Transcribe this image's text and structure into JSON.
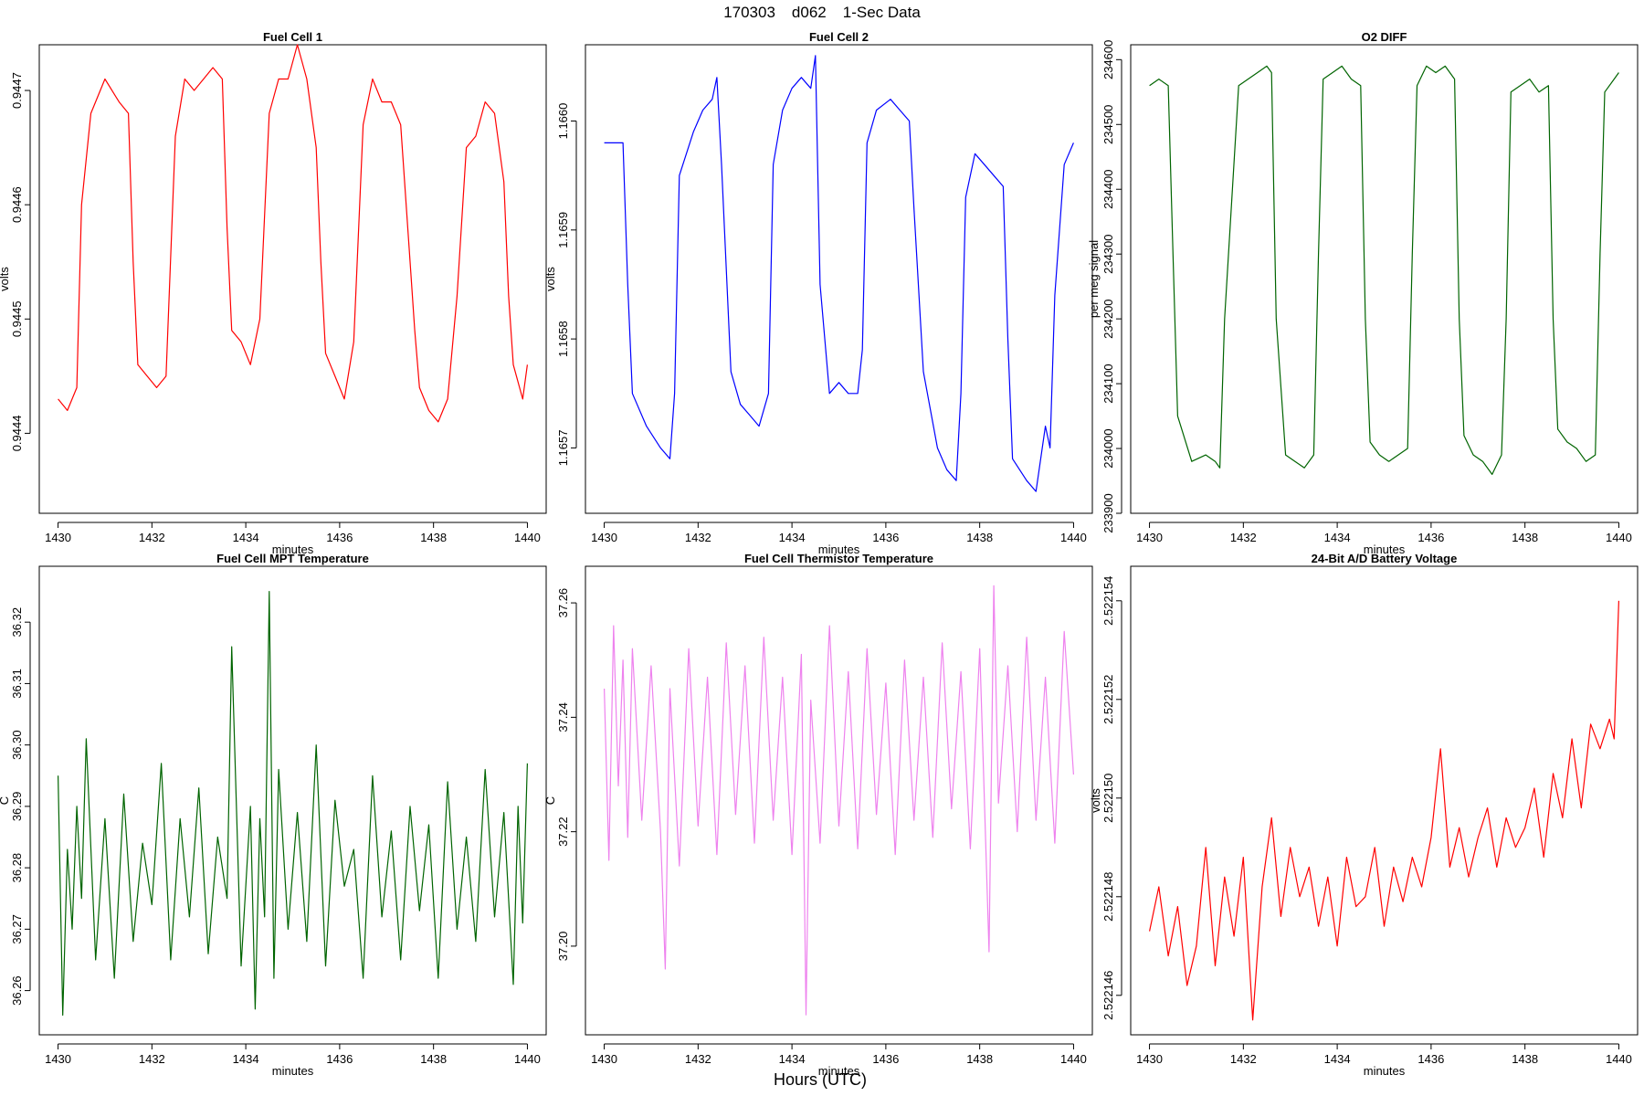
{
  "figure": {
    "title_date": "170303",
    "title_code": "d062",
    "title_desc": "1-Sec Data",
    "xlabel": "Hours (UTC)"
  },
  "chart_data": [
    {
      "id": "fc1",
      "type": "line",
      "title": "Fuel Cell 1",
      "xlabel": "minutes",
      "ylabel": "volts",
      "color": "#ff0000",
      "xlim": [
        1429.6,
        1440.4
      ],
      "ylim": [
        0.94433,
        0.94474
      ],
      "xticks": [
        1430,
        1432,
        1434,
        1436,
        1438,
        1440
      ],
      "yticks": [
        "0.9444",
        "0.9445",
        "0.9446",
        "0.9447"
      ],
      "x": [
        1430.0,
        1430.2,
        1430.4,
        1430.5,
        1430.7,
        1430.9,
        1431.0,
        1431.3,
        1431.5,
        1431.6,
        1431.7,
        1431.9,
        1432.1,
        1432.3,
        1432.5,
        1432.7,
        1432.9,
        1433.1,
        1433.3,
        1433.5,
        1433.6,
        1433.7,
        1433.9,
        1434.1,
        1434.3,
        1434.5,
        1434.7,
        1434.9,
        1435.1,
        1435.3,
        1435.5,
        1435.6,
        1435.7,
        1435.9,
        1436.1,
        1436.3,
        1436.5,
        1436.7,
        1436.9,
        1437.1,
        1437.3,
        1437.5,
        1437.6,
        1437.7,
        1437.9,
        1438.1,
        1438.3,
        1438.5,
        1438.7,
        1438.9,
        1439.1,
        1439.3,
        1439.5,
        1439.6,
        1439.7,
        1439.9,
        1440.0
      ],
      "y": [
        0.94443,
        0.94442,
        0.94444,
        0.9446,
        0.94468,
        0.9447,
        0.94471,
        0.94469,
        0.94468,
        0.94455,
        0.94446,
        0.94445,
        0.94444,
        0.94445,
        0.94466,
        0.94471,
        0.9447,
        0.94471,
        0.94472,
        0.94471,
        0.94458,
        0.94449,
        0.94448,
        0.94446,
        0.9445,
        0.94468,
        0.94471,
        0.94471,
        0.94474,
        0.94471,
        0.94465,
        0.94455,
        0.94447,
        0.94445,
        0.94443,
        0.94448,
        0.94467,
        0.94471,
        0.94469,
        0.94469,
        0.94467,
        0.94455,
        0.94449,
        0.94444,
        0.94442,
        0.94441,
        0.94443,
        0.94452,
        0.94465,
        0.94466,
        0.94469,
        0.94468,
        0.94462,
        0.94452,
        0.94446,
        0.94443,
        0.94446
      ]
    },
    {
      "id": "fc2",
      "type": "line",
      "title": "Fuel Cell 2",
      "xlabel": "minutes",
      "ylabel": "volts",
      "color": "#0000ff",
      "xlim": [
        1429.6,
        1440.4
      ],
      "ylim": [
        1.16564,
        1.16607
      ],
      "xticks": [
        1430,
        1432,
        1434,
        1436,
        1438,
        1440
      ],
      "yticks": [
        "1.1657",
        "1.1658",
        "1.1659",
        "1.1660"
      ],
      "x": [
        1430.0,
        1430.2,
        1430.4,
        1430.5,
        1430.6,
        1430.9,
        1431.2,
        1431.4,
        1431.5,
        1431.6,
        1431.9,
        1432.1,
        1432.3,
        1432.4,
        1432.5,
        1432.7,
        1432.9,
        1433.1,
        1433.3,
        1433.5,
        1433.6,
        1433.8,
        1434.0,
        1434.2,
        1434.4,
        1434.5,
        1434.6,
        1434.8,
        1435.0,
        1435.2,
        1435.4,
        1435.5,
        1435.6,
        1435.8,
        1436.1,
        1436.3,
        1436.5,
        1436.6,
        1436.8,
        1437.1,
        1437.3,
        1437.5,
        1437.6,
        1437.7,
        1437.9,
        1438.1,
        1438.3,
        1438.5,
        1438.6,
        1438.7,
        1439.0,
        1439.2,
        1439.4,
        1439.5,
        1439.6,
        1439.8,
        1440.0
      ],
      "y": [
        1.16598,
        1.16598,
        1.16598,
        1.16585,
        1.16575,
        1.16572,
        1.1657,
        1.16569,
        1.16575,
        1.16595,
        1.16599,
        1.16601,
        1.16602,
        1.16604,
        1.16596,
        1.16577,
        1.16574,
        1.16573,
        1.16572,
        1.16575,
        1.16596,
        1.16601,
        1.16603,
        1.16604,
        1.16603,
        1.16606,
        1.16585,
        1.16575,
        1.16576,
        1.16575,
        1.16575,
        1.16579,
        1.16598,
        1.16601,
        1.16602,
        1.16601,
        1.166,
        1.16592,
        1.16577,
        1.1657,
        1.16568,
        1.16567,
        1.16575,
        1.16593,
        1.16597,
        1.16596,
        1.16595,
        1.16594,
        1.1658,
        1.16569,
        1.16567,
        1.16566,
        1.16572,
        1.1657,
        1.16584,
        1.16596,
        1.16598
      ]
    },
    {
      "id": "o2",
      "type": "line",
      "title": "O2 DIFF",
      "xlabel": "minutes",
      "ylabel": "per meg signal",
      "color": "#006400",
      "xlim": [
        1429.6,
        1440.4
      ],
      "ylim": [
        233900,
        234623
      ],
      "xticks": [
        1430,
        1432,
        1434,
        1436,
        1438,
        1440
      ],
      "yticks": [
        "233900",
        "234000",
        "234100",
        "234200",
        "234300",
        "234400",
        "234500",
        "234600"
      ],
      "x": [
        1430.0,
        1430.2,
        1430.4,
        1430.5,
        1430.6,
        1430.9,
        1431.2,
        1431.4,
        1431.5,
        1431.6,
        1431.9,
        1432.1,
        1432.3,
        1432.5,
        1432.6,
        1432.7,
        1432.9,
        1433.1,
        1433.3,
        1433.5,
        1433.6,
        1433.7,
        1433.9,
        1434.1,
        1434.3,
        1434.5,
        1434.6,
        1434.7,
        1434.9,
        1435.1,
        1435.3,
        1435.5,
        1435.6,
        1435.7,
        1435.9,
        1436.1,
        1436.3,
        1436.5,
        1436.6,
        1436.7,
        1436.9,
        1437.1,
        1437.3,
        1437.5,
        1437.6,
        1437.7,
        1437.9,
        1438.1,
        1438.3,
        1438.5,
        1438.6,
        1438.7,
        1438.9,
        1439.1,
        1439.3,
        1439.5,
        1439.6,
        1439.7,
        1439.9,
        1440.0
      ],
      "y": [
        234560,
        234570,
        234560,
        234300,
        234050,
        233980,
        233990,
        233980,
        233970,
        234200,
        234560,
        234570,
        234580,
        234590,
        234580,
        234200,
        233990,
        233980,
        233970,
        233990,
        234300,
        234570,
        234580,
        234590,
        234570,
        234560,
        234200,
        234010,
        233990,
        233980,
        233990,
        234000,
        234300,
        234560,
        234590,
        234580,
        234590,
        234570,
        234200,
        234020,
        233990,
        233980,
        233960,
        233990,
        234200,
        234550,
        234560,
        234570,
        234550,
        234560,
        234200,
        234030,
        234010,
        234000,
        233980,
        233990,
        234300,
        234550,
        234570,
        234580
      ]
    },
    {
      "id": "mpt",
      "type": "line",
      "title": "Fuel Cell MPT Temperature",
      "xlabel": "minutes",
      "ylabel": "C",
      "color": "#006400",
      "xlim": [
        1429.6,
        1440.4
      ],
      "ylim": [
        36.2528,
        36.3291
      ],
      "xticks": [
        1430,
        1432,
        1434,
        1436,
        1438,
        1440
      ],
      "yticks": [
        "36.26",
        "36.27",
        "36.28",
        "36.29",
        "36.30",
        "36.31",
        "36.32"
      ],
      "x": [
        1430.0,
        1430.1,
        1430.2,
        1430.3,
        1430.4,
        1430.5,
        1430.6,
        1430.8,
        1431.0,
        1431.2,
        1431.4,
        1431.6,
        1431.8,
        1432.0,
        1432.2,
        1432.4,
        1432.6,
        1432.8,
        1433.0,
        1433.2,
        1433.4,
        1433.6,
        1433.7,
        1433.9,
        1434.1,
        1434.2,
        1434.3,
        1434.4,
        1434.5,
        1434.6,
        1434.7,
        1434.9,
        1435.1,
        1435.3,
        1435.5,
        1435.7,
        1435.9,
        1436.1,
        1436.3,
        1436.5,
        1436.7,
        1436.9,
        1437.1,
        1437.3,
        1437.5,
        1437.7,
        1437.9,
        1438.1,
        1438.3,
        1438.5,
        1438.7,
        1438.9,
        1439.1,
        1439.3,
        1439.5,
        1439.7,
        1439.8,
        1439.9,
        1440.0
      ],
      "y": [
        36.295,
        36.256,
        36.283,
        36.27,
        36.29,
        36.275,
        36.301,
        36.265,
        36.288,
        36.262,
        36.292,
        36.268,
        36.284,
        36.274,
        36.297,
        36.265,
        36.288,
        36.272,
        36.293,
        36.266,
        36.285,
        36.275,
        36.316,
        36.264,
        36.29,
        36.257,
        36.288,
        36.272,
        36.325,
        36.262,
        36.296,
        36.27,
        36.289,
        36.268,
        36.3,
        36.264,
        36.291,
        36.277,
        36.283,
        36.262,
        36.295,
        36.272,
        36.286,
        36.265,
        36.29,
        36.273,
        36.287,
        36.262,
        36.294,
        36.27,
        36.285,
        36.268,
        36.296,
        36.272,
        36.289,
        36.261,
        36.29,
        36.271,
        36.297
      ]
    },
    {
      "id": "therm",
      "type": "line",
      "title": "Fuel Cell Thermistor Temperature",
      "xlabel": "minutes",
      "ylabel": "C",
      "color": "#ee82ee",
      "xlim": [
        1429.6,
        1440.4
      ],
      "ylim": [
        37.1845,
        37.2664
      ],
      "xticks": [
        1430,
        1432,
        1434,
        1436,
        1438,
        1440
      ],
      "yticks": [
        "37.20",
        "37.22",
        "37.24",
        "37.26"
      ],
      "x": [
        1430.0,
        1430.1,
        1430.2,
        1430.3,
        1430.4,
        1430.5,
        1430.6,
        1430.8,
        1431.0,
        1431.2,
        1431.3,
        1431.4,
        1431.6,
        1431.8,
        1432.0,
        1432.2,
        1432.4,
        1432.6,
        1432.8,
        1433.0,
        1433.2,
        1433.4,
        1433.6,
        1433.8,
        1434.0,
        1434.2,
        1434.3,
        1434.4,
        1434.6,
        1434.8,
        1435.0,
        1435.2,
        1435.4,
        1435.6,
        1435.8,
        1436.0,
        1436.2,
        1436.4,
        1436.6,
        1436.8,
        1437.0,
        1437.2,
        1437.4,
        1437.6,
        1437.8,
        1438.0,
        1438.2,
        1438.3,
        1438.4,
        1438.6,
        1438.8,
        1439.0,
        1439.2,
        1439.4,
        1439.6,
        1439.8,
        1440.0
      ],
      "y": [
        37.245,
        37.215,
        37.256,
        37.228,
        37.25,
        37.219,
        37.252,
        37.222,
        37.249,
        37.22,
        37.196,
        37.245,
        37.214,
        37.252,
        37.221,
        37.247,
        37.216,
        37.253,
        37.223,
        37.249,
        37.218,
        37.254,
        37.222,
        37.247,
        37.216,
        37.251,
        37.188,
        37.243,
        37.218,
        37.256,
        37.221,
        37.248,
        37.217,
        37.252,
        37.223,
        37.246,
        37.216,
        37.25,
        37.222,
        37.247,
        37.219,
        37.253,
        37.224,
        37.248,
        37.217,
        37.252,
        37.199,
        37.263,
        37.225,
        37.249,
        37.22,
        37.254,
        37.222,
        37.247,
        37.218,
        37.255,
        37.23
      ]
    },
    {
      "id": "batt",
      "type": "line",
      "title": "24-Bit A/D Battery Voltage",
      "xlabel": "minutes",
      "ylabel": "volts",
      "color": "#ff0000",
      "xlim": [
        1429.6,
        1440.4
      ],
      "ylim": [
        2.5221452,
        2.5221547
      ],
      "xticks": [
        1430,
        1432,
        1434,
        1436,
        1438,
        1440
      ],
      "yticks": [
        "2.522146",
        "2.522148",
        "2.522150",
        "2.522152",
        "2.522154"
      ],
      "x": [
        1430.0,
        1430.2,
        1430.4,
        1430.6,
        1430.8,
        1431.0,
        1431.2,
        1431.4,
        1431.6,
        1431.8,
        1432.0,
        1432.2,
        1432.4,
        1432.6,
        1432.8,
        1433.0,
        1433.2,
        1433.4,
        1433.6,
        1433.8,
        1434.0,
        1434.2,
        1434.4,
        1434.6,
        1434.8,
        1435.0,
        1435.2,
        1435.4,
        1435.6,
        1435.8,
        1436.0,
        1436.2,
        1436.4,
        1436.6,
        1436.8,
        1437.0,
        1437.2,
        1437.4,
        1437.6,
        1437.8,
        1438.0,
        1438.2,
        1438.4,
        1438.6,
        1438.8,
        1439.0,
        1439.2,
        1439.4,
        1439.6,
        1439.8,
        1439.9,
        1440.0
      ],
      "y": [
        2.5221473,
        2.5221482,
        2.5221468,
        2.5221478,
        2.5221462,
        2.522147,
        2.522149,
        2.5221466,
        2.5221484,
        2.5221472,
        2.5221488,
        2.5221455,
        2.5221482,
        2.5221496,
        2.5221476,
        2.522149,
        2.522148,
        2.5221486,
        2.5221474,
        2.5221484,
        2.522147,
        2.5221488,
        2.5221478,
        2.522148,
        2.522149,
        2.5221474,
        2.5221486,
        2.5221479,
        2.5221488,
        2.5221482,
        2.5221492,
        2.522151,
        2.5221486,
        2.5221494,
        2.5221484,
        2.5221492,
        2.5221498,
        2.5221486,
        2.5221496,
        2.522149,
        2.5221494,
        2.5221502,
        2.5221488,
        2.5221505,
        2.5221496,
        2.5221512,
        2.5221498,
        2.5221515,
        2.522151,
        2.5221516,
        2.5221512,
        2.522154
      ]
    }
  ]
}
